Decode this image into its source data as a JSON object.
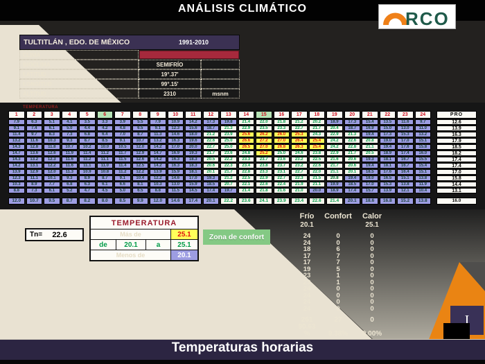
{
  "header": {
    "title": "ANÁLISIS CLIMÁTICO",
    "logo_text": "RCO"
  },
  "location": {
    "name": "TULTITLÁN , EDO. DE MÉXICO",
    "period": "1991-2010",
    "rows": [
      {
        "label": "CLIMA",
        "value": "",
        "type": "bar"
      },
      {
        "label": "BIOCLIMA",
        "value": "SEMIFRÍO",
        "type": "text"
      },
      {
        "label": "LATITUD",
        "value": "19°.37'",
        "type": "text"
      },
      {
        "label": "LONGITUD",
        "value": "99°.15'",
        "type": "text"
      },
      {
        "label": "ALTITUD",
        "value": "2310",
        "unit": "msnm",
        "type": "text"
      }
    ]
  },
  "table": {
    "label": "TEMPERATURA",
    "pro_label": "PRO",
    "hours": [
      "1",
      "2",
      "3",
      "4",
      "5",
      "6",
      "7",
      "8",
      "9",
      "10",
      "11",
      "12",
      "13",
      "14",
      "15",
      "16",
      "17",
      "18",
      "19",
      "20",
      "21",
      "22",
      "23",
      "24"
    ],
    "highlight_hours": [
      6,
      15
    ],
    "rows": [
      [
        "7.9",
        "6.3",
        "5.1",
        "4.1",
        "3.5",
        "3.3",
        "3.9",
        "5.5",
        "7.9",
        "10.9",
        "14.2",
        "17.3",
        "19.8",
        "21.4",
        "22.0",
        "21.8",
        "21.2",
        "20.2",
        "18.9",
        "17.3",
        "15.4",
        "13.5",
        "11.6",
        "9.7"
      ],
      [
        "9.1",
        "7.4",
        "6.1",
        "5.0",
        "4.4",
        "4.2",
        "4.8",
        "6.5",
        "9.1",
        "12.3",
        "15.6",
        "18.7",
        "21.3",
        "22.9",
        "23.5",
        "23.3",
        "22.7",
        "21.7",
        "20.4",
        "18.7",
        "16.9",
        "15.0",
        "13.0",
        "11.0"
      ],
      [
        "11.4",
        "9.7",
        "8.3",
        "7.3",
        "6.8",
        "6.4",
        "7.0",
        "8.7",
        "11.3",
        "14.6",
        "18.0",
        "21.2",
        "23.9",
        "25.6",
        "26.2",
        "26.0",
        "25.3",
        "24.3",
        "22.9",
        "21.3",
        "19.4",
        "17.3",
        "15.3",
        "13.2"
      ],
      [
        "13.2",
        "11.6",
        "10.3",
        "9.3",
        "8.7",
        "8.5",
        "9.1",
        "10.7",
        "13.2",
        "16.3",
        "19.6",
        "22.6",
        "25.0",
        "26.6",
        "27.2",
        "27.0",
        "26.4",
        "25.4",
        "24.2",
        "22.6",
        "20.8",
        "19.0",
        "17.0",
        "15.1"
      ],
      [
        "14.3",
        "12.8",
        "11.8",
        "10.7",
        "10.2",
        "10.0",
        "10.5",
        "12.0",
        "14.2",
        "17.0",
        "20.0",
        "22.7",
        "25.0",
        "26.5",
        "27.0",
        "26.8",
        "26.3",
        "25.4",
        "24.2",
        "22.8",
        "21.1",
        "19.4",
        "17.6",
        "15.8"
      ],
      [
        "14.7",
        "13.6",
        "12.6",
        "11.9",
        "11.4",
        "11.2",
        "11.7",
        "12.9",
        "14.7",
        "16.9",
        "19.3",
        "21.7",
        "23.6",
        "24.8",
        "25.2",
        "25.0",
        "24.6",
        "23.8",
        "22.9",
        "21.7",
        "20.5",
        "18.9",
        "17.4",
        "16.0"
      ],
      [
        "14.3",
        "13.2",
        "12.3",
        "11.6",
        "11.2",
        "11.1",
        "11.5",
        "12.6",
        "14.2",
        "16.3",
        "18.3",
        "20.5",
        "22.2",
        "23.3",
        "23.7",
        "23.6",
        "23.2",
        "22.5",
        "21.6",
        "20.6",
        "19.3",
        "18.1",
        "16.7",
        "15.5"
      ],
      [
        "14.2",
        "13.1",
        "12.2",
        "11.6",
        "11.1",
        "11.0",
        "11.4",
        "12.5",
        "14.2",
        "16.3",
        "18.3",
        "20.6",
        "22.3",
        "23.4",
        "23.8",
        "23.7",
        "23.2",
        "22.6",
        "21.7",
        "20.6",
        "19.4",
        "18.1",
        "16.7",
        "15.4"
      ],
      [
        "13.9",
        "12.9",
        "12.0",
        "11.3",
        "10.9",
        "10.8",
        "11.2",
        "12.2",
        "13.9",
        "15.9",
        "18.1",
        "20.1",
        "21.7",
        "22.8",
        "23.3",
        "23.1",
        "22.7",
        "22.0",
        "21.1",
        "20.1",
        "18.5",
        "17.6",
        "16.4",
        "15.1"
      ],
      [
        "12.3",
        "11.1",
        "10.1",
        "9.3",
        "8.9",
        "8.7",
        "9.1",
        "10.4",
        "12.2",
        "14.6",
        "17.0",
        "19.3",
        "21.2",
        "22.5",
        "22.9",
        "22.7",
        "22.3",
        "21.5",
        "20.8",
        "19.4",
        "18.0",
        "16.5",
        "15.1",
        "13.8"
      ],
      [
        "10.3",
        "8.9",
        "7.7",
        "6.8",
        "6.3",
        "6.1",
        "6.6",
        "8.1",
        "10.3",
        "13.0",
        "15.9",
        "18.5",
        "20.7",
        "22.1",
        "22.6",
        "22.4",
        "21.9",
        "21.1",
        "19.9",
        "18.5",
        "17.0",
        "15.3",
        "13.8",
        "11.9"
      ],
      [
        "8.8",
        "7.3",
        "6.1",
        "5.2",
        "4.7",
        "4.5",
        "5.0",
        "6.5",
        "8.8",
        "11.5",
        "14.5",
        "17.4",
        "19.7",
        "21.4",
        "21.8",
        "21.6",
        "21.0",
        "20.0",
        "18.9",
        "17.4",
        "15.7",
        "13.9",
        "12.1",
        "10.4"
      ]
    ],
    "pro": [
      "12.6",
      "13.9",
      "16.3",
      "17.9",
      "18.5",
      "18.2",
      "17.4",
      "17.4",
      "17.0",
      "15.8",
      "14.4",
      "13.1"
    ],
    "avg": [
      "12.0",
      "10.7",
      "9.5",
      "8.7",
      "8.2",
      "8.0",
      "8.5",
      "9.9",
      "12.0",
      "14.6",
      "17.4",
      "20.1",
      "22.2",
      "23.6",
      "24.1",
      "23.9",
      "23.4",
      "22.6",
      "21.4",
      "20.1",
      "18.6",
      "16.8",
      "15.2",
      "13.8"
    ],
    "avg_pro": "16.0",
    "avg_cold_override_cols": [
      12,
      20
    ],
    "bold_cell": {
      "row": 10,
      "col": 19
    }
  },
  "legend": {
    "title": "TEMPERATURA",
    "mas_de_label": "Más de",
    "hot_value": "25.1",
    "de_label": "de",
    "comfort_from": "20.1",
    "a_label": "a",
    "comfort_to": "25.1",
    "menos_de_label": "Menos de",
    "cold_value": "20.1"
  },
  "tn": {
    "label": "Tn=",
    "value": "22.6"
  },
  "comfort_button_label": "Zona de confort",
  "stats": {
    "col_headers": [
      "Frío",
      "Confort",
      "Calor"
    ],
    "thresholds": [
      "20.1",
      "",
      "25.1"
    ],
    "rows": [
      [
        "24",
        "0",
        "0"
      ],
      [
        "24",
        "0",
        "0"
      ],
      [
        "18",
        "6",
        "0"
      ],
      [
        "17",
        "7",
        "0"
      ],
      [
        "17",
        "7",
        "0"
      ],
      [
        "19",
        "5",
        "0"
      ],
      [
        "23",
        "1",
        "0"
      ],
      [
        "23",
        "1",
        "0"
      ],
      [
        "24",
        "0",
        "0"
      ],
      [
        "24",
        "0",
        "0"
      ],
      [
        "24",
        "0",
        "0"
      ],
      [
        "24",
        "0",
        "0"
      ]
    ],
    "totals": [
      "261",
      "27",
      "0"
    ],
    "frio_pct": "90.63",
    "pct_row": [
      "%",
      "9.38%",
      "0.00%"
    ]
  },
  "footer": {
    "title": "Temperaturas horarias",
    "slide_marker": "I"
  },
  "colors": {
    "cold_bg": "#9d9de2",
    "comfort_text": "#009b48",
    "hot_bg": "#ffff5a",
    "hot_text": "#e01010",
    "accent_orange": "#ea8413",
    "header_highlight_green": "#b5e3b5",
    "footer_purple": "#2c2542",
    "location_purple": "#3b3153",
    "clima_bar_red": "#a6293c",
    "beige": "#e9e2d2"
  }
}
